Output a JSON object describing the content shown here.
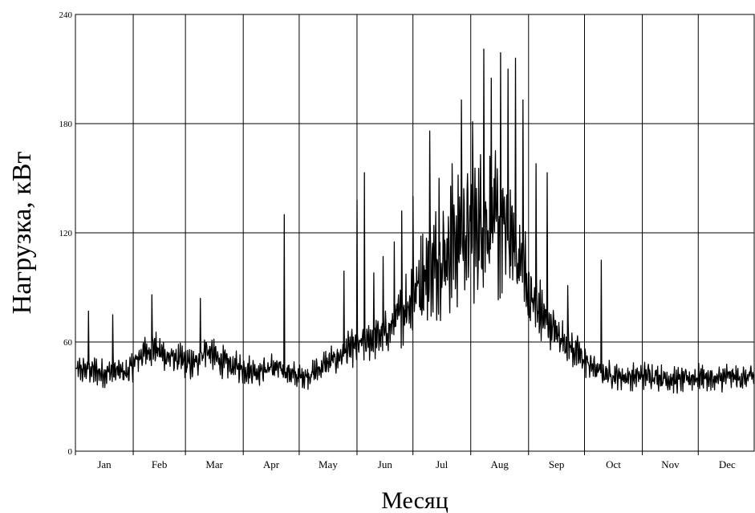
{
  "chart_data": {
    "type": "line",
    "title": "",
    "xlabel": "Месяц",
    "ylabel": "Нагрузка, кВт",
    "ylim": [
      0,
      240
    ],
    "y_ticks": [
      "0",
      "60",
      "120",
      "180",
      "240"
    ],
    "categories": [
      "Jan",
      "Feb",
      "Mar",
      "Apr",
      "May",
      "Jun",
      "Jul",
      "Aug",
      "Sep",
      "Oct",
      "Nov",
      "Dec"
    ],
    "grid": true,
    "legend": "none",
    "series": [
      {
        "color": "#000000",
        "x_unit": "day of year",
        "x": [
          1,
          8,
          15,
          22,
          29,
          36,
          43,
          50,
          57,
          64,
          71,
          78,
          85,
          92,
          99,
          106,
          113,
          120,
          127,
          134,
          141,
          148,
          155,
          162,
          169,
          176,
          183,
          190,
          197,
          204,
          211,
          218,
          225,
          232,
          239,
          246,
          253,
          260,
          267,
          274,
          281,
          288,
          295,
          302,
          309,
          316,
          323,
          330,
          337,
          344,
          351,
          358,
          365
        ],
        "values": [
          44,
          45,
          43,
          44,
          43,
          53,
          57,
          52,
          50,
          47,
          56,
          50,
          47,
          45,
          44,
          46,
          44,
          41,
          42,
          47,
          51,
          56,
          59,
          62,
          66,
          76,
          88,
          99,
          106,
          115,
          121,
          124,
          125,
          120,
          106,
          82,
          72,
          64,
          57,
          50,
          44,
          42,
          41,
          41,
          42,
          40,
          39,
          40,
          41,
          39,
          41,
          40,
          41
        ]
      },
      {
        "name_hint": "",
        "spikes": [
          [
            8,
            77
          ],
          [
            21,
            75
          ],
          [
            42,
            86
          ],
          [
            68,
            84
          ],
          [
            113,
            130
          ],
          [
            145,
            99
          ],
          [
            152,
            138
          ],
          [
            156,
            153
          ],
          [
            161,
            98
          ],
          [
            166,
            107
          ],
          [
            172,
            115
          ],
          [
            176,
            132
          ],
          [
            182,
            140
          ],
          [
            191,
            176
          ],
          [
            196,
            150
          ],
          [
            203,
            158
          ],
          [
            208,
            193
          ],
          [
            214,
            181
          ],
          [
            220,
            221
          ],
          [
            224,
            205
          ],
          [
            229,
            219
          ],
          [
            233,
            210
          ],
          [
            237,
            216
          ],
          [
            241,
            193
          ],
          [
            248,
            158
          ],
          [
            254,
            153
          ],
          [
            265,
            91
          ],
          [
            283,
            105
          ]
        ]
      }
    ]
  }
}
